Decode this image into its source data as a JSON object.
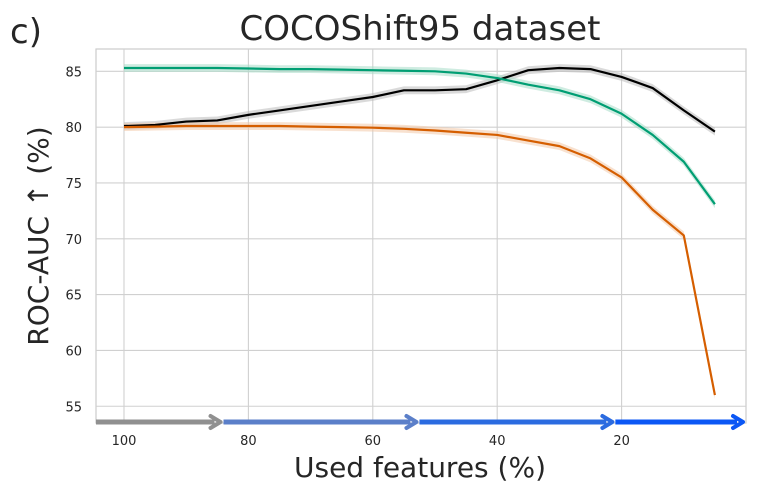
{
  "panel_label": "c)",
  "chart_data": {
    "type": "line",
    "title": "COCOShift95 dataset",
    "xlabel": "Used features (%)",
    "ylabel": "ROC-AUC ↑ (%)",
    "x_reversed": true,
    "xlim": [
      104.5,
      0
    ],
    "ylim": [
      53.5,
      87
    ],
    "x_ticks": [
      "100",
      "80",
      "60",
      "40",
      "20"
    ],
    "y_ticks": [
      "55",
      "60",
      "65",
      "70",
      "75",
      "80",
      "85"
    ],
    "grid": true,
    "x": [
      100,
      95,
      90,
      85,
      80,
      75,
      70,
      65,
      60,
      55,
      50,
      45,
      40,
      35,
      30,
      25,
      20,
      15,
      10,
      5
    ],
    "series": [
      {
        "color": "#000000",
        "band_color": "#bbbbbb",
        "values": [
          80.1,
          80.2,
          80.5,
          80.6,
          81.1,
          81.5,
          81.9,
          82.3,
          82.7,
          83.3,
          83.3,
          83.4,
          84.2,
          85.1,
          85.3,
          85.2,
          84.5,
          83.5,
          81.5,
          79.6
        ]
      },
      {
        "color": "#009e73",
        "band_color": "#a8dcc8",
        "values": [
          85.3,
          85.3,
          85.3,
          85.3,
          85.25,
          85.2,
          85.2,
          85.15,
          85.1,
          85.05,
          85.0,
          84.8,
          84.4,
          83.8,
          83.3,
          82.5,
          81.2,
          79.3,
          76.9,
          73.1
        ]
      },
      {
        "color": "#d55e00",
        "band_color": "#f3c8a8",
        "values": [
          80.0,
          80.05,
          80.1,
          80.1,
          80.1,
          80.1,
          80.05,
          80.0,
          79.95,
          79.85,
          79.7,
          79.5,
          79.3,
          78.8,
          78.3,
          77.2,
          75.5,
          72.6,
          70.3,
          56.0
        ]
      }
    ],
    "progress_arrow": {
      "colors": [
        "#909090",
        "#5b7fc9",
        "#2b6be0",
        "#0b57f5"
      ],
      "segment_breaks": [
        104.5,
        84,
        52.5,
        21,
        0
      ]
    }
  }
}
